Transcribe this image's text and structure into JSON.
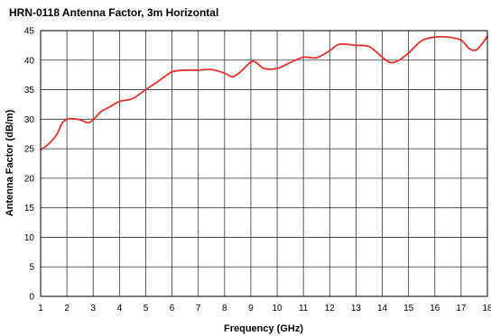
{
  "chart_data": {
    "type": "line",
    "title": "HRN-0118 Antenna Factor, 3m Horizontal",
    "xlabel": "Frequency (GHz)",
    "ylabel": "Antenna Factor (dB/m)",
    "xlim": [
      1,
      18
    ],
    "ylim": [
      0,
      45
    ],
    "x_ticks": [
      "1",
      "2",
      "3",
      "4",
      "5",
      "6",
      "7",
      "8",
      "9",
      "10",
      "11",
      "12",
      "13",
      "14",
      "15",
      "16",
      "17",
      "18"
    ],
    "y_ticks": [
      "0",
      "5",
      "10",
      "15",
      "20",
      "25",
      "30",
      "35",
      "40",
      "45"
    ],
    "grid": true,
    "legend": "none",
    "series": [
      {
        "color": "#e8312a",
        "x": [
          1.0,
          1.3,
          1.6,
          1.8,
          2.0,
          2.2,
          2.5,
          2.8,
          3.0,
          3.3,
          3.6,
          4.0,
          4.5,
          5.0,
          5.5,
          6.0,
          6.5,
          7.0,
          7.5,
          8.0,
          8.3,
          8.6,
          9.0,
          9.2,
          9.5,
          10.0,
          10.5,
          11.0,
          11.5,
          12.0,
          12.3,
          12.6,
          13.0,
          13.5,
          14.0,
          14.3,
          14.6,
          15.0,
          15.5,
          16.0,
          16.5,
          17.0,
          17.3,
          17.6,
          18.0
        ],
        "y": [
          24.8,
          25.8,
          27.3,
          29.2,
          30.0,
          30.1,
          29.9,
          29.4,
          29.9,
          31.3,
          32.0,
          33.0,
          33.5,
          35.0,
          36.5,
          38.0,
          38.3,
          38.3,
          38.4,
          37.8,
          37.2,
          38.0,
          39.7,
          39.6,
          38.6,
          38.6,
          39.6,
          40.5,
          40.4,
          41.6,
          42.6,
          42.7,
          42.5,
          42.3,
          40.5,
          39.6,
          39.9,
          41.2,
          43.3,
          43.9,
          43.9,
          43.4,
          42.0,
          41.8,
          44.0
        ]
      }
    ]
  }
}
